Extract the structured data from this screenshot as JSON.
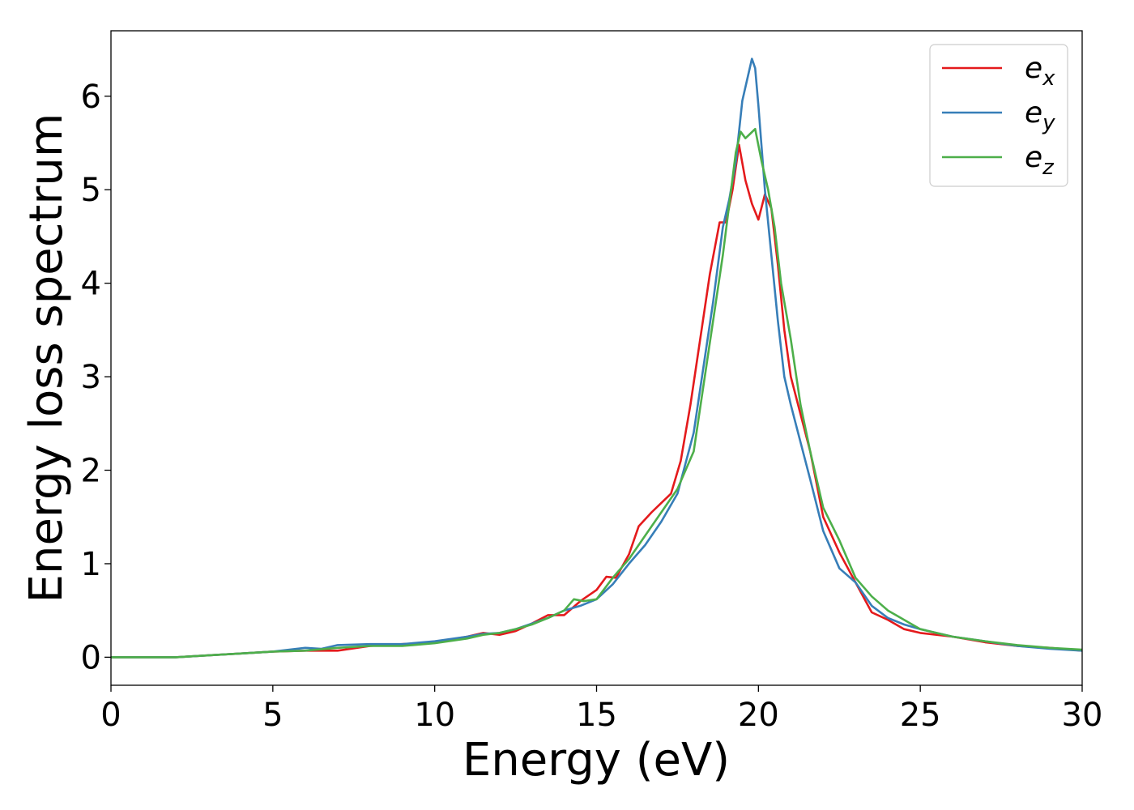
{
  "chart_data": {
    "type": "line",
    "title": "",
    "xlabel": "Energy (eV)",
    "ylabel": "Energy loss spectrum",
    "xlim": [
      0,
      30
    ],
    "ylim": [
      -0.3,
      6.7
    ],
    "xticks": [
      0,
      5,
      10,
      15,
      20,
      25,
      30
    ],
    "yticks": [
      0,
      1,
      2,
      3,
      4,
      5,
      6
    ],
    "grid": false,
    "legend_position": "top-right",
    "series": [
      {
        "name": "e_x",
        "legend_base": "e",
        "legend_sub": "x",
        "color": "#e41a1c",
        "x": [
          0,
          2,
          3,
          4,
          5,
          6,
          6.5,
          7,
          8,
          9,
          10,
          11,
          11.5,
          12,
          12.5,
          13,
          13.5,
          14,
          14.5,
          15,
          15.3,
          15.6,
          16,
          16.3,
          16.7,
          17,
          17.3,
          17.6,
          17.9,
          18.2,
          18.5,
          18.8,
          19.0,
          19.2,
          19.4,
          19.6,
          19.8,
          20.0,
          20.2,
          20.4,
          20.6,
          20.8,
          21.0,
          21.3,
          21.6,
          22.0,
          22.5,
          23.0,
          23.5,
          24.0,
          24.5,
          25,
          26,
          27,
          28,
          29,
          30
        ],
        "y": [
          0.0,
          0.0,
          0.02,
          0.04,
          0.06,
          0.07,
          0.07,
          0.07,
          0.12,
          0.14,
          0.16,
          0.22,
          0.26,
          0.24,
          0.28,
          0.36,
          0.45,
          0.45,
          0.6,
          0.72,
          0.86,
          0.85,
          1.1,
          1.4,
          1.55,
          1.65,
          1.75,
          2.1,
          2.7,
          3.4,
          4.1,
          4.65,
          4.65,
          5.0,
          5.48,
          5.1,
          4.85,
          4.68,
          4.95,
          4.8,
          4.2,
          3.5,
          3.0,
          2.6,
          2.2,
          1.5,
          1.12,
          0.8,
          0.48,
          0.4,
          0.3,
          0.26,
          0.22,
          0.16,
          0.12,
          0.1,
          0.07
        ]
      },
      {
        "name": "e_y",
        "legend_base": "e",
        "legend_sub": "y",
        "color": "#377eb8",
        "x": [
          0,
          2,
          3,
          4,
          5,
          6,
          6.5,
          7,
          8,
          9,
          10,
          11,
          11.5,
          12,
          12.5,
          13,
          13.5,
          14,
          14.5,
          15,
          15.5,
          16,
          16.5,
          17,
          17.5,
          18,
          18.3,
          18.6,
          18.9,
          19.1,
          19.3,
          19.5,
          19.7,
          19.8,
          19.9,
          20.0,
          20.2,
          20.4,
          20.6,
          20.8,
          21.0,
          21.3,
          21.6,
          22.0,
          22.5,
          23.0,
          23.5,
          24.0,
          24.5,
          25,
          26,
          27,
          28,
          29,
          30
        ],
        "y": [
          0.0,
          0.0,
          0.02,
          0.04,
          0.06,
          0.1,
          0.09,
          0.13,
          0.14,
          0.14,
          0.17,
          0.22,
          0.25,
          0.26,
          0.3,
          0.36,
          0.42,
          0.5,
          0.55,
          0.62,
          0.78,
          1.0,
          1.2,
          1.45,
          1.75,
          2.4,
          3.1,
          3.8,
          4.6,
          4.9,
          5.3,
          5.95,
          6.25,
          6.4,
          6.3,
          5.9,
          5.0,
          4.3,
          3.6,
          3.0,
          2.7,
          2.3,
          1.9,
          1.35,
          0.95,
          0.8,
          0.55,
          0.42,
          0.35,
          0.3,
          0.22,
          0.17,
          0.12,
          0.09,
          0.07
        ]
      },
      {
        "name": "e_z",
        "legend_base": "e",
        "legend_sub": "z",
        "color": "#4daf4a",
        "x": [
          0,
          2,
          3,
          4,
          5,
          6,
          7,
          8,
          9,
          10,
          11,
          11.5,
          12,
          12.5,
          13,
          13.5,
          14,
          14.3,
          14.6,
          15,
          15.5,
          16,
          16.5,
          17,
          17.5,
          18,
          18.3,
          18.6,
          18.9,
          19.1,
          19.3,
          19.45,
          19.6,
          19.75,
          19.9,
          20.1,
          20.3,
          20.5,
          20.7,
          21.0,
          21.3,
          21.6,
          22.0,
          22.5,
          23.0,
          23.5,
          24.0,
          24.5,
          25,
          26,
          27,
          28,
          29,
          30
        ],
        "y": [
          0.0,
          0.0,
          0.02,
          0.04,
          0.06,
          0.07,
          0.1,
          0.12,
          0.12,
          0.15,
          0.2,
          0.24,
          0.26,
          0.3,
          0.35,
          0.42,
          0.5,
          0.62,
          0.6,
          0.62,
          0.85,
          1.05,
          1.3,
          1.55,
          1.8,
          2.2,
          2.9,
          3.6,
          4.3,
          4.85,
          5.4,
          5.62,
          5.55,
          5.6,
          5.65,
          5.3,
          5.0,
          4.6,
          4.0,
          3.4,
          2.7,
          2.2,
          1.6,
          1.25,
          0.85,
          0.65,
          0.5,
          0.4,
          0.3,
          0.22,
          0.17,
          0.13,
          0.1,
          0.08
        ]
      }
    ]
  }
}
